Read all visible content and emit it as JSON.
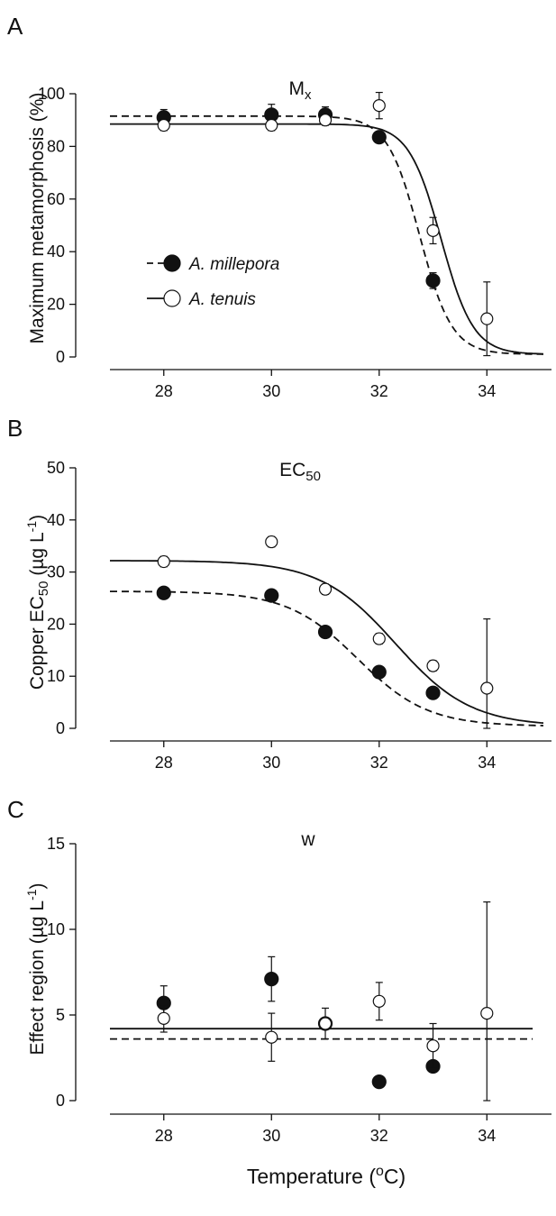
{
  "figure": {
    "xlabel": "Temperature (ºC)"
  },
  "chart_data": [
    {
      "type": "scatter",
      "panel_letter": "A",
      "title": "Mx",
      "ylabel": "Maximum metamorphosis (%)",
      "xlim": [
        27,
        35.2
      ],
      "ylim": [
        0,
        100
      ],
      "xticks": [
        28,
        30,
        32,
        34
      ],
      "yticks": [
        0,
        20,
        40,
        60,
        80,
        100
      ],
      "legend": {
        "placement": "center-left",
        "entries": [
          "A. millepora",
          "A. tenuis"
        ]
      },
      "series": [
        {
          "name": "A. millepora",
          "marker": "filled",
          "line": "dashed",
          "points": [
            {
              "x": 28,
              "y": 91,
              "err": 3
            },
            {
              "x": 30,
              "y": 92,
              "err": 4
            },
            {
              "x": 31,
              "y": 92,
              "err": 3
            },
            {
              "x": 32,
              "y": 83.5,
              "err": 2
            },
            {
              "x": 33,
              "y": 29,
              "err": 3
            }
          ],
          "fit": {
            "top": 91.5,
            "bottom": 1,
            "mid": 32.75,
            "slope": 0.3
          }
        },
        {
          "name": "A. tenuis",
          "marker": "open",
          "line": "solid",
          "points": [
            {
              "x": 28,
              "y": 88,
              "err": 2
            },
            {
              "x": 30,
              "y": 88,
              "err": 2
            },
            {
              "x": 31,
              "y": 90,
              "err": 2
            },
            {
              "x": 32,
              "y": 95.5,
              "err": 5
            },
            {
              "x": 33,
              "y": 48,
              "err": 5
            },
            {
              "x": 34,
              "y": 14.5,
              "err": 14
            }
          ],
          "fit": {
            "top": 88.5,
            "bottom": 1,
            "mid": 33.15,
            "slope": 0.3
          }
        }
      ]
    },
    {
      "type": "scatter",
      "panel_letter": "B",
      "title": "EC50",
      "ylabel": "Copper EC50 (µg L-1)",
      "xlim": [
        27,
        35.2
      ],
      "ylim": [
        0,
        50
      ],
      "xticks": [
        28,
        30,
        32,
        34
      ],
      "yticks": [
        0,
        10,
        20,
        30,
        40,
        50
      ],
      "series": [
        {
          "name": "A. millepora",
          "marker": "filled",
          "line": "dashed",
          "points": [
            {
              "x": 28,
              "y": 26,
              "err": 1
            },
            {
              "x": 30,
              "y": 25.5,
              "err": 1
            },
            {
              "x": 31,
              "y": 18.5,
              "err": 1
            },
            {
              "x": 32,
              "y": 10.8,
              "err": 1
            },
            {
              "x": 33,
              "y": 6.8,
              "err": 1
            }
          ],
          "fit": {
            "top": 26.3,
            "bottom": 0.4,
            "mid": 31.6,
            "slope": 0.65
          }
        },
        {
          "name": "A. tenuis",
          "marker": "open",
          "line": "solid",
          "points": [
            {
              "x": 28,
              "y": 32,
              "err": 1
            },
            {
              "x": 30,
              "y": 35.8,
              "err": 1
            },
            {
              "x": 31,
              "y": 26.7,
              "err": 1
            },
            {
              "x": 32,
              "y": 17.2,
              "err": 1
            },
            {
              "x": 33,
              "y": 12,
              "err": 1
            },
            {
              "x": 34,
              "y": 7.7,
              "err": 13.3
            }
          ],
          "fit": {
            "top": 32.2,
            "bottom": 0.4,
            "mid": 32.3,
            "slope": 0.7
          }
        }
      ]
    },
    {
      "type": "scatter",
      "panel_letter": "C",
      "title": "w",
      "ylabel": "Effect region (µg L-1)",
      "xlim": [
        27,
        35.2
      ],
      "ylim": [
        0,
        15
      ],
      "xticks": [
        28,
        30,
        32,
        34
      ],
      "yticks": [
        0,
        5,
        10,
        15
      ],
      "series": [
        {
          "name": "A. millepora",
          "marker": "filled",
          "line": "dashed",
          "points": [
            {
              "x": 28,
              "y": 5.7,
              "err": 1
            },
            {
              "x": 30,
              "y": 7.1,
              "err": 1.3
            },
            {
              "x": 31,
              "y": 4.5,
              "err": 0.3
            },
            {
              "x": 32,
              "y": 1.1,
              "err": 0.2
            },
            {
              "x": 33,
              "y": 2.0,
              "err": 0.2
            }
          ],
          "hline": 3.6
        },
        {
          "name": "A. tenuis",
          "marker": "open",
          "line": "solid",
          "points": [
            {
              "x": 28,
              "y": 4.8,
              "err": 0.8
            },
            {
              "x": 30,
              "y": 3.7,
              "err": 1.4
            },
            {
              "x": 31,
              "y": 4.5,
              "err": 0.9
            },
            {
              "x": 32,
              "y": 5.8,
              "err": 1.1
            },
            {
              "x": 33,
              "y": 3.2,
              "err": 1.3
            },
            {
              "x": 34,
              "y": 5.1,
              "err": 6.5
            }
          ],
          "hline": 4.2
        }
      ]
    }
  ]
}
